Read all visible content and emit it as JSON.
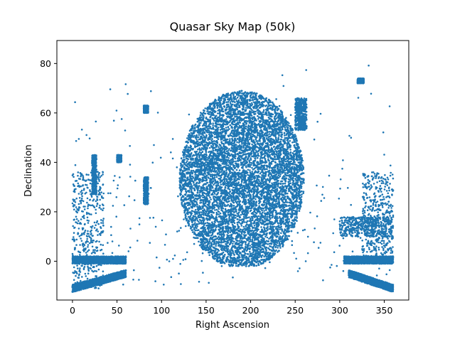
{
  "chart_data": {
    "type": "scatter",
    "title": "Quasar Sky Map (50k)",
    "xlabel": "Right Ascension",
    "ylabel": "Declination",
    "xlim": [
      -17.5,
      377.5
    ],
    "ylim": [
      -15.7,
      89.3
    ],
    "xticks": [
      0,
      50,
      100,
      150,
      200,
      250,
      300,
      350
    ],
    "yticks": [
      0,
      20,
      40,
      60,
      80
    ],
    "grid": false,
    "marker_color": "#1f77b4",
    "series": [
      {
        "point_count_shown": 50000,
        "regions": [
          {
            "ra": [
              120,
              260
            ],
            "dec": [
              -3,
              69
            ],
            "shape": "ellipse",
            "density": "dense"
          },
          {
            "ra": [
              0,
              35
            ],
            "dec": [
              -11,
              36
            ],
            "shape": "box",
            "density": "medium"
          },
          {
            "ra": [
              0,
              60
            ],
            "dec": [
              -1,
              2
            ],
            "shape": "strip",
            "density": "dense"
          },
          {
            "ra": [
              0,
              60
            ],
            "dec": [
              -11,
              -5
            ],
            "shape": "arc",
            "density": "dense"
          },
          {
            "ra": [
              325,
              360
            ],
            "dec": [
              -1,
              36
            ],
            "shape": "box",
            "density": "medium"
          },
          {
            "ra": [
              310,
              360
            ],
            "dec": [
              -11,
              -5
            ],
            "shape": "arc",
            "density": "dense"
          },
          {
            "ra": [
              305,
              360
            ],
            "dec": [
              -1,
              2
            ],
            "shape": "strip",
            "density": "dense"
          },
          {
            "ra": [
              300,
              360
            ],
            "dec": [
              10,
              18
            ],
            "shape": "band",
            "density": "medium"
          },
          {
            "ra": [
              250,
              263
            ],
            "dec": [
              53,
              66
            ],
            "shape": "band",
            "density": "medium"
          },
          {
            "ra": [
              80,
              85
            ],
            "dec": [
              60,
              63
            ],
            "shape": "box",
            "density": "medium"
          },
          {
            "ra": [
              22,
              27
            ],
            "dec": [
              27,
              43
            ],
            "shape": "box",
            "density": "medium"
          },
          {
            "ra": [
              50,
              55
            ],
            "dec": [
              40,
              43
            ],
            "shape": "box",
            "density": "medium"
          },
          {
            "ra": [
              80,
              85
            ],
            "dec": [
              23,
              34
            ],
            "shape": "box",
            "density": "medium"
          },
          {
            "ra": [
              320,
              327
            ],
            "dec": [
              72,
              74
            ],
            "shape": "box",
            "density": "medium"
          }
        ]
      }
    ]
  }
}
